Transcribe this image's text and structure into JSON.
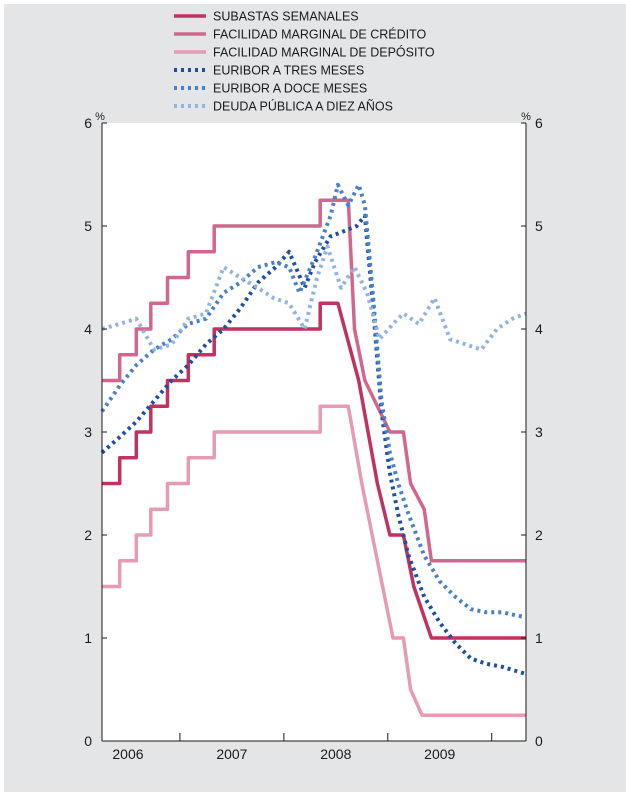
{
  "chart_data": {
    "type": "line",
    "title": "",
    "xlabel": "",
    "ylabel": "%",
    "ylabel_right": "%",
    "ylim": [
      0,
      6
    ],
    "yticks": [
      0,
      1,
      2,
      3,
      4,
      5,
      6
    ],
    "xlim": [
      2005.75,
      2009.83
    ],
    "xtick_labels": [
      "2006",
      "2007",
      "2008",
      "2009"
    ],
    "xtick_positions": [
      2006.0,
      2007.0,
      2008.0,
      2009.0
    ],
    "legend_position": "top",
    "grid": false,
    "series": [
      {
        "name": "SUBASTAS SEMANALES",
        "color": "#c0325f",
        "style": "solid",
        "points": [
          [
            2005.75,
            2.5
          ],
          [
            2005.92,
            2.5
          ],
          [
            2005.92,
            2.75
          ],
          [
            2006.08,
            2.75
          ],
          [
            2006.08,
            3.0
          ],
          [
            2006.22,
            3.0
          ],
          [
            2006.22,
            3.25
          ],
          [
            2006.38,
            3.25
          ],
          [
            2006.38,
            3.5
          ],
          [
            2006.58,
            3.5
          ],
          [
            2006.58,
            3.75
          ],
          [
            2006.83,
            3.75
          ],
          [
            2006.83,
            4.0
          ],
          [
            2007.85,
            4.0
          ],
          [
            2007.85,
            4.25
          ],
          [
            2008.02,
            4.25
          ],
          [
            2008.22,
            3.5
          ],
          [
            2008.4,
            2.5
          ],
          [
            2008.52,
            2.0
          ],
          [
            2008.65,
            2.0
          ],
          [
            2008.75,
            1.5
          ],
          [
            2008.92,
            1.0
          ],
          [
            2009.83,
            1.0
          ]
        ]
      },
      {
        "name": "FACILIDAD MARGINAL DE CRÉDITO",
        "color": "#d1678e",
        "style": "solid",
        "points": [
          [
            2005.75,
            3.5
          ],
          [
            2005.92,
            3.5
          ],
          [
            2005.92,
            3.75
          ],
          [
            2006.08,
            3.75
          ],
          [
            2006.08,
            4.0
          ],
          [
            2006.22,
            4.0
          ],
          [
            2006.22,
            4.25
          ],
          [
            2006.38,
            4.25
          ],
          [
            2006.38,
            4.5
          ],
          [
            2006.58,
            4.5
          ],
          [
            2006.58,
            4.75
          ],
          [
            2006.83,
            4.75
          ],
          [
            2006.83,
            5.0
          ],
          [
            2007.85,
            5.0
          ],
          [
            2007.85,
            5.25
          ],
          [
            2008.02,
            5.25
          ],
          [
            2008.12,
            5.25
          ],
          [
            2008.18,
            4.0
          ],
          [
            2008.28,
            3.5
          ],
          [
            2008.52,
            3.0
          ],
          [
            2008.65,
            3.0
          ],
          [
            2008.72,
            2.5
          ],
          [
            2008.85,
            2.25
          ],
          [
            2008.92,
            1.75
          ],
          [
            2009.83,
            1.75
          ]
        ]
      },
      {
        "name": "FACILIDAD MARGINAL DE DEPÓSITO",
        "color": "#e69ab5",
        "style": "solid",
        "points": [
          [
            2005.75,
            1.5
          ],
          [
            2005.92,
            1.5
          ],
          [
            2005.92,
            1.75
          ],
          [
            2006.08,
            1.75
          ],
          [
            2006.08,
            2.0
          ],
          [
            2006.22,
            2.0
          ],
          [
            2006.22,
            2.25
          ],
          [
            2006.38,
            2.25
          ],
          [
            2006.38,
            2.5
          ],
          [
            2006.58,
            2.5
          ],
          [
            2006.58,
            2.75
          ],
          [
            2006.83,
            2.75
          ],
          [
            2006.83,
            3.0
          ],
          [
            2007.85,
            3.0
          ],
          [
            2007.85,
            3.25
          ],
          [
            2008.02,
            3.25
          ],
          [
            2008.12,
            3.25
          ],
          [
            2008.25,
            2.5
          ],
          [
            2008.35,
            2.0
          ],
          [
            2008.45,
            1.5
          ],
          [
            2008.55,
            1.0
          ],
          [
            2008.65,
            1.0
          ],
          [
            2008.72,
            0.5
          ],
          [
            2008.83,
            0.25
          ],
          [
            2009.83,
            0.25
          ]
        ]
      },
      {
        "name": "EURIBOR A TRES MESES",
        "color": "#1f4e9e",
        "style": "dotted",
        "points": [
          [
            2005.75,
            2.8
          ],
          [
            2005.92,
            2.95
          ],
          [
            2006.08,
            3.1
          ],
          [
            2006.25,
            3.3
          ],
          [
            2006.42,
            3.5
          ],
          [
            2006.58,
            3.65
          ],
          [
            2006.75,
            3.85
          ],
          [
            2006.92,
            4.0
          ],
          [
            2007.08,
            4.2
          ],
          [
            2007.25,
            4.45
          ],
          [
            2007.42,
            4.6
          ],
          [
            2007.55,
            4.75
          ],
          [
            2007.7,
            4.4
          ],
          [
            2007.8,
            4.65
          ],
          [
            2007.95,
            4.9
          ],
          [
            2008.08,
            4.95
          ],
          [
            2008.2,
            5.0
          ],
          [
            2008.28,
            5.1
          ],
          [
            2008.36,
            4.2
          ],
          [
            2008.44,
            3.2
          ],
          [
            2008.52,
            2.6
          ],
          [
            2008.6,
            2.2
          ],
          [
            2008.7,
            1.8
          ],
          [
            2008.85,
            1.4
          ],
          [
            2009.0,
            1.15
          ],
          [
            2009.15,
            0.95
          ],
          [
            2009.3,
            0.8
          ],
          [
            2009.45,
            0.75
          ],
          [
            2009.6,
            0.72
          ],
          [
            2009.83,
            0.65
          ]
        ]
      },
      {
        "name": "EURIBOR A DOCE MESES",
        "color": "#4a80c7",
        "style": "dotted",
        "points": [
          [
            2005.75,
            3.2
          ],
          [
            2005.92,
            3.45
          ],
          [
            2006.08,
            3.65
          ],
          [
            2006.25,
            3.8
          ],
          [
            2006.42,
            3.9
          ],
          [
            2006.58,
            4.05
          ],
          [
            2006.75,
            4.1
          ],
          [
            2006.92,
            4.35
          ],
          [
            2007.08,
            4.45
          ],
          [
            2007.25,
            4.6
          ],
          [
            2007.42,
            4.65
          ],
          [
            2007.55,
            4.6
          ],
          [
            2007.65,
            4.35
          ],
          [
            2007.8,
            4.7
          ],
          [
            2007.95,
            5.1
          ],
          [
            2008.02,
            5.4
          ],
          [
            2008.12,
            5.2
          ],
          [
            2008.22,
            5.4
          ],
          [
            2008.28,
            5.2
          ],
          [
            2008.36,
            4.3
          ],
          [
            2008.44,
            3.3
          ],
          [
            2008.52,
            2.8
          ],
          [
            2008.6,
            2.5
          ],
          [
            2008.7,
            2.2
          ],
          [
            2008.85,
            1.8
          ],
          [
            2009.0,
            1.55
          ],
          [
            2009.15,
            1.4
          ],
          [
            2009.3,
            1.28
          ],
          [
            2009.45,
            1.25
          ],
          [
            2009.6,
            1.25
          ],
          [
            2009.83,
            1.2
          ]
        ]
      },
      {
        "name": "DEUDA PÚBLICA A DIEZ AÑOS",
        "color": "#93b4dd",
        "style": "dotted",
        "points": [
          [
            2005.75,
            4.0
          ],
          [
            2005.92,
            4.05
          ],
          [
            2006.08,
            4.1
          ],
          [
            2006.25,
            3.8
          ],
          [
            2006.42,
            3.85
          ],
          [
            2006.58,
            4.1
          ],
          [
            2006.75,
            4.15
          ],
          [
            2006.92,
            4.6
          ],
          [
            2007.08,
            4.5
          ],
          [
            2007.25,
            4.4
          ],
          [
            2007.4,
            4.3
          ],
          [
            2007.55,
            4.25
          ],
          [
            2007.7,
            4.0
          ],
          [
            2007.82,
            4.5
          ],
          [
            2007.92,
            4.8
          ],
          [
            2008.05,
            4.4
          ],
          [
            2008.18,
            4.6
          ],
          [
            2008.3,
            4.35
          ],
          [
            2008.42,
            3.9
          ],
          [
            2008.55,
            4.05
          ],
          [
            2008.65,
            4.15
          ],
          [
            2008.8,
            4.05
          ],
          [
            2008.95,
            4.3
          ],
          [
            2009.1,
            3.9
          ],
          [
            2009.25,
            3.85
          ],
          [
            2009.4,
            3.8
          ],
          [
            2009.55,
            4.0
          ],
          [
            2009.7,
            4.1
          ],
          [
            2009.83,
            4.15
          ]
        ]
      }
    ]
  }
}
